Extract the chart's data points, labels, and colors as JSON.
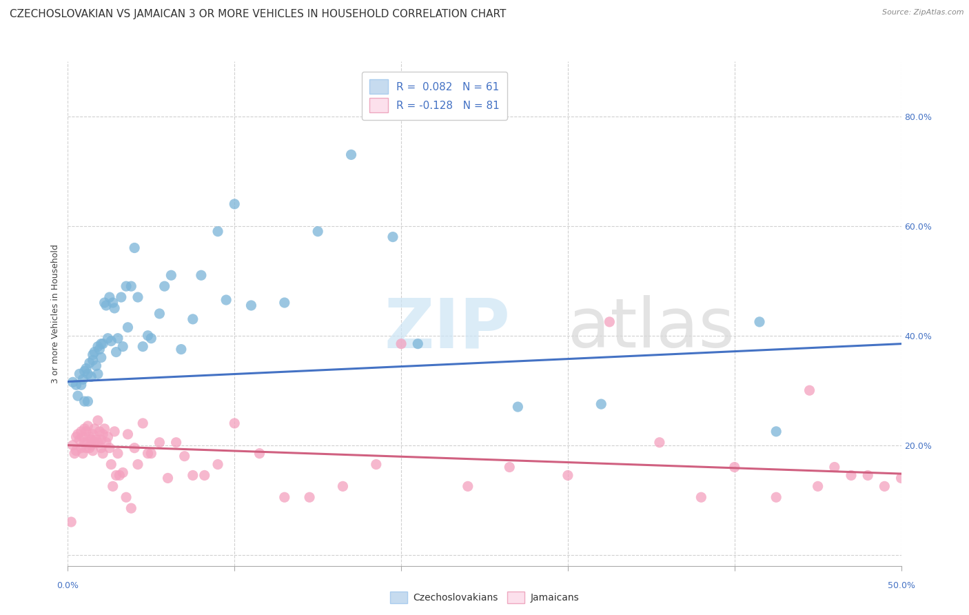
{
  "title": "CZECHOSLOVAKIAN VS JAMAICAN 3 OR MORE VEHICLES IN HOUSEHOLD CORRELATION CHART",
  "source": "Source: ZipAtlas.com",
  "ylabel": "3 or more Vehicles in Household",
  "ytick_labels": [
    "",
    "20.0%",
    "40.0%",
    "60.0%",
    "80.0%"
  ],
  "ytick_values": [
    0.0,
    0.2,
    0.4,
    0.6,
    0.8
  ],
  "xlim": [
    0.0,
    0.5
  ],
  "ylim": [
    -0.02,
    0.9
  ],
  "blue_color": "#7ab4d8",
  "pink_color": "#f4a0be",
  "blue_fill": "#c6dbef",
  "pink_fill": "#fce0ec",
  "blue_line_color": "#4472c4",
  "pink_line_color": "#d06080",
  "watermark_zip_color": "#cce0f0",
  "watermark_atlas_color": "#d8d8d8",
  "blue_scatter_x": [
    0.003,
    0.005,
    0.006,
    0.007,
    0.008,
    0.009,
    0.01,
    0.01,
    0.011,
    0.012,
    0.012,
    0.013,
    0.014,
    0.015,
    0.015,
    0.016,
    0.017,
    0.018,
    0.018,
    0.019,
    0.02,
    0.02,
    0.021,
    0.022,
    0.023,
    0.024,
    0.025,
    0.026,
    0.027,
    0.028,
    0.029,
    0.03,
    0.032,
    0.033,
    0.035,
    0.036,
    0.038,
    0.04,
    0.042,
    0.045,
    0.048,
    0.05,
    0.055,
    0.058,
    0.062,
    0.068,
    0.075,
    0.08,
    0.09,
    0.095,
    0.1,
    0.11,
    0.13,
    0.15,
    0.17,
    0.195,
    0.21,
    0.27,
    0.32,
    0.415,
    0.425
  ],
  "blue_scatter_y": [
    0.315,
    0.31,
    0.29,
    0.33,
    0.31,
    0.32,
    0.335,
    0.28,
    0.34,
    0.33,
    0.28,
    0.35,
    0.325,
    0.365,
    0.355,
    0.37,
    0.345,
    0.38,
    0.33,
    0.375,
    0.385,
    0.36,
    0.385,
    0.46,
    0.455,
    0.395,
    0.47,
    0.39,
    0.46,
    0.45,
    0.37,
    0.395,
    0.47,
    0.38,
    0.49,
    0.415,
    0.49,
    0.56,
    0.47,
    0.38,
    0.4,
    0.395,
    0.44,
    0.49,
    0.51,
    0.375,
    0.43,
    0.51,
    0.59,
    0.465,
    0.64,
    0.455,
    0.46,
    0.59,
    0.73,
    0.58,
    0.385,
    0.27,
    0.275,
    0.425,
    0.225
  ],
  "pink_scatter_x": [
    0.002,
    0.003,
    0.004,
    0.005,
    0.005,
    0.006,
    0.007,
    0.008,
    0.008,
    0.009,
    0.009,
    0.01,
    0.01,
    0.011,
    0.011,
    0.012,
    0.012,
    0.013,
    0.013,
    0.014,
    0.014,
    0.015,
    0.015,
    0.016,
    0.016,
    0.017,
    0.018,
    0.018,
    0.019,
    0.02,
    0.02,
    0.021,
    0.021,
    0.022,
    0.023,
    0.024,
    0.025,
    0.026,
    0.027,
    0.028,
    0.029,
    0.03,
    0.031,
    0.033,
    0.035,
    0.036,
    0.038,
    0.04,
    0.042,
    0.045,
    0.048,
    0.05,
    0.055,
    0.06,
    0.065,
    0.07,
    0.075,
    0.082,
    0.09,
    0.1,
    0.115,
    0.13,
    0.145,
    0.165,
    0.185,
    0.2,
    0.24,
    0.265,
    0.3,
    0.325,
    0.355,
    0.38,
    0.4,
    0.425,
    0.45,
    0.46,
    0.47,
    0.48,
    0.49,
    0.5,
    0.445
  ],
  "pink_scatter_y": [
    0.06,
    0.2,
    0.185,
    0.215,
    0.19,
    0.22,
    0.21,
    0.225,
    0.195,
    0.185,
    0.215,
    0.205,
    0.23,
    0.225,
    0.195,
    0.235,
    0.205,
    0.215,
    0.195,
    0.21,
    0.2,
    0.22,
    0.19,
    0.23,
    0.205,
    0.21,
    0.245,
    0.205,
    0.225,
    0.21,
    0.195,
    0.22,
    0.185,
    0.23,
    0.205,
    0.215,
    0.195,
    0.165,
    0.125,
    0.225,
    0.145,
    0.185,
    0.145,
    0.15,
    0.105,
    0.22,
    0.085,
    0.195,
    0.165,
    0.24,
    0.185,
    0.185,
    0.205,
    0.14,
    0.205,
    0.18,
    0.145,
    0.145,
    0.165,
    0.24,
    0.185,
    0.105,
    0.105,
    0.125,
    0.165,
    0.385,
    0.125,
    0.16,
    0.145,
    0.425,
    0.205,
    0.105,
    0.16,
    0.105,
    0.125,
    0.16,
    0.145,
    0.145,
    0.125,
    0.14,
    0.3
  ],
  "blue_line_x": [
    0.0,
    0.5
  ],
  "blue_line_y": [
    0.316,
    0.385
  ],
  "pink_line_x": [
    0.0,
    0.5
  ],
  "pink_line_y": [
    0.2,
    0.148
  ],
  "grid_color": "#d0d0d0",
  "title_fontsize": 11,
  "axis_label_fontsize": 9,
  "tick_fontsize": 9,
  "scatter_size": 120
}
